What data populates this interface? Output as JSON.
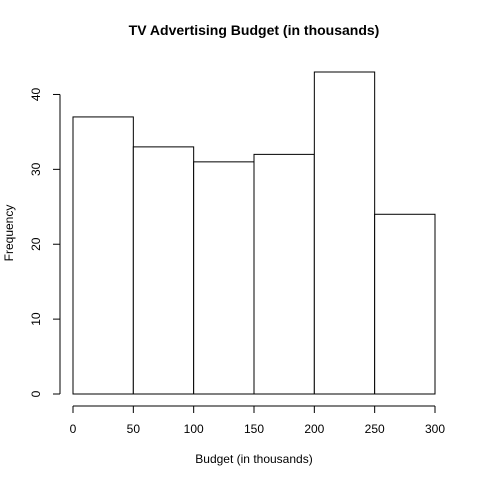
{
  "chart_data": {
    "type": "bar",
    "title": "TV Advertising Budget (in thousands)",
    "xlabel": "Budget (in thousands)",
    "ylabel": "Frequency",
    "bins": [
      {
        "start": 0,
        "end": 50,
        "count": 37
      },
      {
        "start": 50,
        "end": 100,
        "count": 33
      },
      {
        "start": 100,
        "end": 150,
        "count": 31
      },
      {
        "start": 150,
        "end": 200,
        "count": 32
      },
      {
        "start": 200,
        "end": 250,
        "count": 43
      },
      {
        "start": 250,
        "end": 300,
        "count": 24
      }
    ],
    "xlim": [
      0,
      300
    ],
    "ylim": [
      0,
      43
    ],
    "x_ticks": [
      "0",
      "50",
      "100",
      "150",
      "200",
      "250",
      "300"
    ],
    "y_ticks": [
      "0",
      "10",
      "20",
      "30",
      "40"
    ],
    "grid": false,
    "legend": "none",
    "bar_fill": "#ffffff",
    "bar_stroke": "#000000"
  }
}
